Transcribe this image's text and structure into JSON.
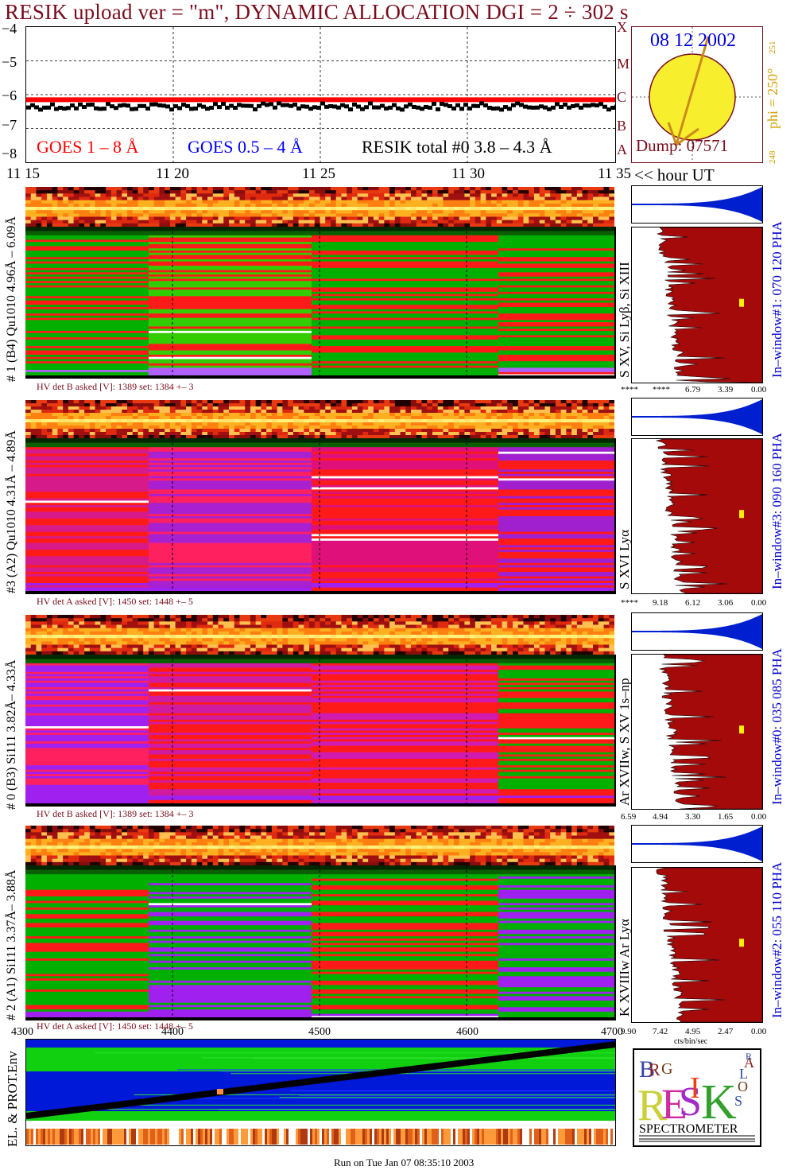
{
  "header": {
    "title": "RESIK upload ver = \"m\", DYNAMIC ALLOCATION  DGI =   2 ÷ 302 s"
  },
  "goes_chart": {
    "y_ticks": [
      "−4",
      "−5",
      "−6",
      "−7",
      "−8"
    ],
    "legend": {
      "goes_long": "GOES 1 – 8 Å",
      "goes_short": "GOES 0.5 – 4 Å",
      "resik_total": "RESIK total #0  3.8 – 4.3 Å"
    },
    "colors": {
      "goes_long": "#ff0000",
      "goes_short": "#0000ff",
      "resik": "#000000"
    }
  },
  "sun_panel": {
    "date": "08 12 2002",
    "class_letters": [
      "X",
      "M",
      "C",
      "B",
      "A"
    ],
    "dump": "Dump: 07571",
    "phi_label": "phi = 250°",
    "phi_sub": "251",
    "phi_bottom": "248"
  },
  "time_axis": {
    "ticks": [
      "11 15",
      "11 20",
      "11 25",
      "11 30",
      "11 35"
    ],
    "unit_label": "<< hour UT"
  },
  "spectra": [
    {
      "id": "ch1",
      "left_label": "# 1 (B4) Qu1010 4.96Å – 6.09Å",
      "line_label": "S XV, Si Lyβ, Si XIII",
      "window_label": "In–window#1:  070 120 PHA",
      "hv": "HV det B asked [V]:  1389 set:  1384 +–    3",
      "xticks": [
        "****",
        "****",
        "6.79",
        "3.39",
        "0.00"
      ]
    },
    {
      "id": "ch3",
      "left_label": "#3 (A2) Qu1010  4.31Å – 4.89Å",
      "line_label": "S XVI Lyα",
      "window_label": "In–window#3:  090 160 PHA",
      "hv": "HV det A asked [V]:  1450 set:  1448 +–    5",
      "xticks": [
        "****",
        "9.18",
        "6.12",
        "3.06",
        "0.00"
      ]
    },
    {
      "id": "ch0",
      "left_label": "# 0 (B3) Si111  3.82Å– 4.33Å",
      "line_label": "Ar XVIIw,  S XV 1s–np",
      "window_label": "In–window#0:  035 085 PHA",
      "hv": "HV det B asked [V]:  1389 set:  1384 +–    3",
      "xticks": [
        "6.59",
        "4.94",
        "3.30",
        "1.65",
        "0.00"
      ]
    },
    {
      "id": "ch2",
      "left_label": "# 2 (A1) Si111  3.37Å– 3.88Å",
      "line_label": "K XVIIIw  Ar Lyα",
      "window_label": "In–window#2:  055 110 PHA",
      "hv": "HV det A asked [V]:  1450 set:  1448 +–    5",
      "xticks": [
        "9.90",
        "7.42",
        "4.95",
        "2.47",
        "0.00"
      ],
      "x_unit": "cts/bin/sec"
    }
  ],
  "env_panel": {
    "label": "EL. & PROT.Env",
    "x_ticks": [
      "4300",
      "4400",
      "4500",
      "4600",
      "4700"
    ]
  },
  "logo": {
    "letters": [
      "B",
      "R",
      "G",
      "R",
      "E",
      "S",
      "I",
      "K",
      "S",
      "O",
      "L",
      "A",
      "R"
    ],
    "caption": "SPECTROMETER"
  },
  "footer": {
    "run_text": "Run on Tue Jan 07 08:35:10 2003"
  },
  "chart_data": [
    {
      "type": "line",
      "title": "",
      "x_range": [
        "11:15",
        "11:35"
      ],
      "ylim": [
        -8,
        -4
      ],
      "series": [
        {
          "name": "GOES 1 – 8 Å",
          "approx_level": -6.15
        },
        {
          "name": "RESIK total #0  3.8 – 4.3 Å",
          "approx_level": -6.35
        }
      ]
    },
    {
      "type": "heatmap",
      "panels": [
        "#1",
        "#3",
        "#0",
        "#2"
      ],
      "x_range": [
        "11:15",
        "11:35"
      ],
      "segment_breaks": [
        "11:19",
        "11:25",
        "11:31"
      ]
    }
  ]
}
